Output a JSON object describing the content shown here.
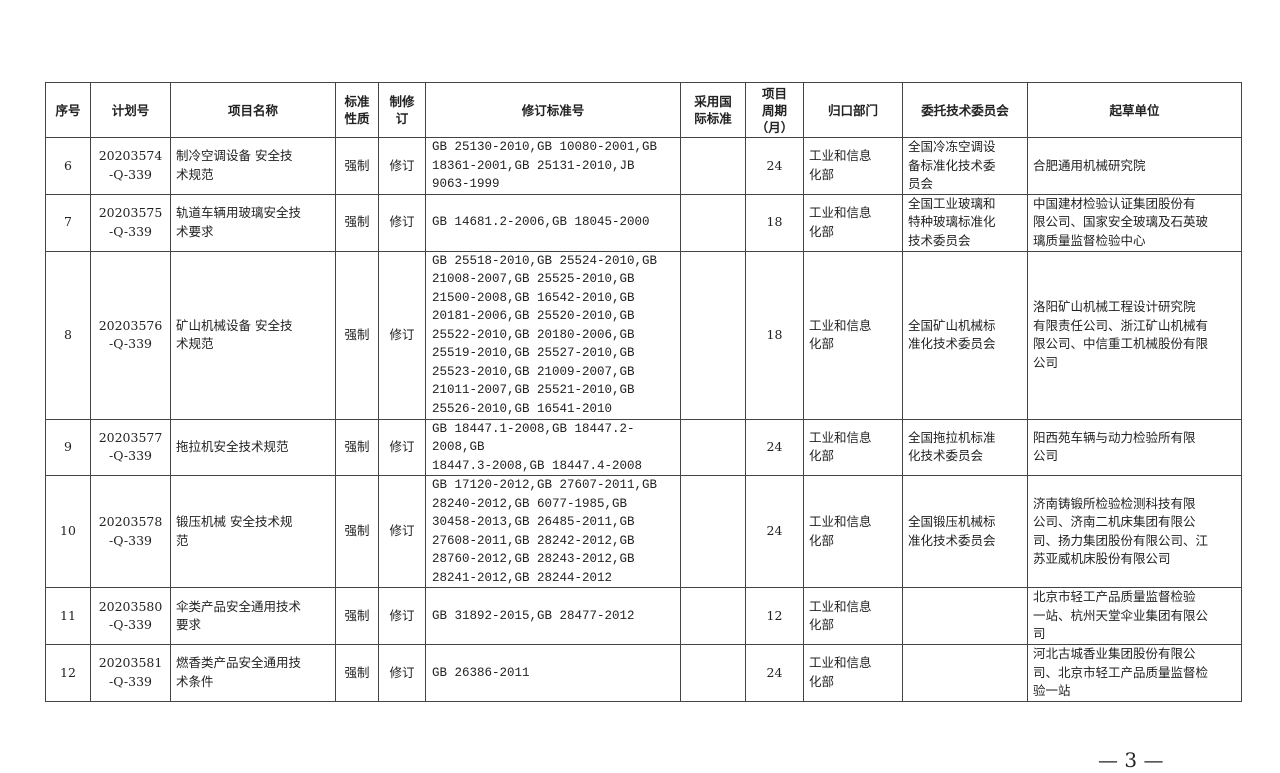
{
  "headers": [
    "序号",
    "计划号",
    "项目名称",
    "标准\n性质",
    "制修\n订",
    "修订标准号",
    "采用国\n际标准",
    "项目\n周期\n（月）",
    "归口部门",
    "委托技术委员会",
    "起草单位"
  ],
  "rows": [
    {
      "no": "6",
      "plan": "20203574\n-Q-339",
      "name": "制冷空调设备 安全技\n术规范",
      "nature": "强制",
      "type": "修订",
      "std": "GB 25130-2010,GB 10080-2001,GB\n18361-2001,GB 25131-2010,JB\n9063-1999",
      "intl": "",
      "period": "24",
      "dept": "工业和信息\n化部",
      "committee": "全国冷冻空调设\n备标准化技术委\n员会",
      "drafter": "合肥通用机械研究院"
    },
    {
      "no": "7",
      "plan": "20203575\n-Q-339",
      "name": "轨道车辆用玻璃安全技\n术要求",
      "nature": "强制",
      "type": "修订",
      "std": "GB 14681.2-2006,GB 18045-2000",
      "intl": "",
      "period": "18",
      "dept": "工业和信息\n化部",
      "committee": "全国工业玻璃和\n特种玻璃标准化\n技术委员会",
      "drafter": "中国建材检验认证集团股份有\n限公司、国家安全玻璃及石英玻\n璃质量监督检验中心"
    },
    {
      "no": "8",
      "plan": "20203576\n-Q-339",
      "name": "矿山机械设备 安全技\n术规范",
      "nature": "强制",
      "type": "修订",
      "std": "GB 25518-2010,GB 25524-2010,GB\n21008-2007,GB 25525-2010,GB\n21500-2008,GB 16542-2010,GB\n20181-2006,GB 25520-2010,GB\n25522-2010,GB 20180-2006,GB\n25519-2010,GB 25527-2010,GB\n25523-2010,GB 21009-2007,GB\n21011-2007,GB 25521-2010,GB\n25526-2010,GB 16541-2010",
      "intl": "",
      "period": "18",
      "dept": "工业和信息\n化部",
      "committee": "全国矿山机械标\n准化技术委员会",
      "drafter": "洛阳矿山机械工程设计研究院\n有限责任公司、浙江矿山机械有\n限公司、中信重工机械股份有限\n公司"
    },
    {
      "no": "9",
      "plan": "20203577\n-Q-339",
      "name": "拖拉机安全技术规范",
      "nature": "强制",
      "type": "修订",
      "std": "GB 18447.1-2008,GB 18447.2-2008,GB\n18447.3-2008,GB 18447.4-2008",
      "intl": "",
      "period": "24",
      "dept": "工业和信息\n化部",
      "committee": "全国拖拉机标准\n化技术委员会",
      "drafter": "阳西苑车辆与动力检验所有限\n公司"
    },
    {
      "no": "10",
      "plan": "20203578\n-Q-339",
      "name": "锻压机械 安全技术规\n范",
      "nature": "强制",
      "type": "修订",
      "std": "GB 17120-2012,GB 27607-2011,GB\n28240-2012,GB 6077-1985,GB\n30458-2013,GB 26485-2011,GB\n27608-2011,GB 28242-2012,GB\n28760-2012,GB 28243-2012,GB\n28241-2012,GB 28244-2012",
      "intl": "",
      "period": "24",
      "dept": "工业和信息\n化部",
      "committee": "全国锻压机械标\n准化技术委员会",
      "drafter": "济南铸锻所检验检测科技有限\n公司、济南二机床集团有限公\n司、扬力集团股份有限公司、江\n苏亚威机床股份有限公司"
    },
    {
      "no": "11",
      "plan": "20203580\n-Q-339",
      "name": "伞类产品安全通用技术\n要求",
      "nature": "强制",
      "type": "修订",
      "std": "GB 31892-2015,GB 28477-2012",
      "intl": "",
      "period": "12",
      "dept": "工业和信息\n化部",
      "committee": "",
      "drafter": "北京市轻工产品质量监督检验\n一站、杭州天堂伞业集团有限公\n司"
    },
    {
      "no": "12",
      "plan": "20203581\n-Q-339",
      "name": "燃香类产品安全通用技\n术条件",
      "nature": "强制",
      "type": "修订",
      "std": "GB 26386-2011",
      "intl": "",
      "period": "24",
      "dept": "工业和信息\n化部",
      "committee": "",
      "drafter": "河北古城香业集团股份有限公\n司、北京市轻工产品质量监督检\n验一站"
    }
  ],
  "page_number": "— 3 —"
}
